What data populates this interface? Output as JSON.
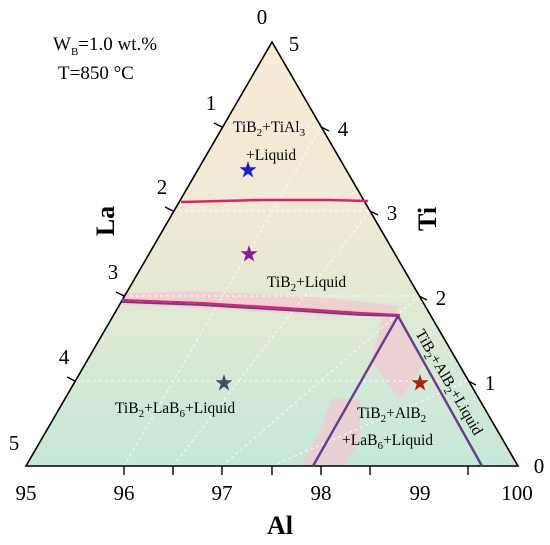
{
  "conditions": {
    "wb_main": "W",
    "wb_sub": "B",
    "wb_rest": "=1.0 wt.%",
    "temperature": "T=850 °C"
  },
  "axes": {
    "al_title": "Al",
    "la_title": "La",
    "ti_title": "Ti",
    "al_ticks": [
      "95",
      "96",
      "97",
      "98",
      "99",
      "100"
    ],
    "la_ticks": [
      "0",
      "1",
      "2",
      "3",
      "4",
      "5"
    ],
    "ti_ticks": [
      "0",
      "1",
      "2",
      "3",
      "4",
      "5"
    ]
  },
  "regions": {
    "r1": {
      "a": "TiB",
      "a_sub": "2",
      "b": "+TiAl",
      "b_sub": "3",
      "line2": "+Liquid"
    },
    "r2": {
      "a": "TiB",
      "a_sub": "2",
      "b": "+Liquid"
    },
    "r3": {
      "a": "TiB",
      "a_sub": "2",
      "b": "+LaB",
      "b_sub": "6",
      "c": "+Liquid"
    },
    "r4": {
      "a": "TiB",
      "a_sub": "2",
      "b": "+AlB",
      "b_sub": "2",
      "line2": "+LaB",
      "line2_sub": "6",
      "line2_rest": "+Liquid"
    },
    "r5": {
      "a": "TiB",
      "a_sub": "2",
      "b": "+AlB",
      "b_sub": "2",
      "c": "+Liquid"
    }
  },
  "colors": {
    "phase_boundary": "#e0206e",
    "region_boundary": "#6b3a8e",
    "fill_top": "#fbecd6",
    "fill_bottom": "#c6ead8",
    "star_blue": "#1a22c8",
    "star_purple": "#8a1b9a",
    "star_dark": "#4a4a66",
    "star_red": "#b02010",
    "shadow": "#f2c9d2"
  }
}
